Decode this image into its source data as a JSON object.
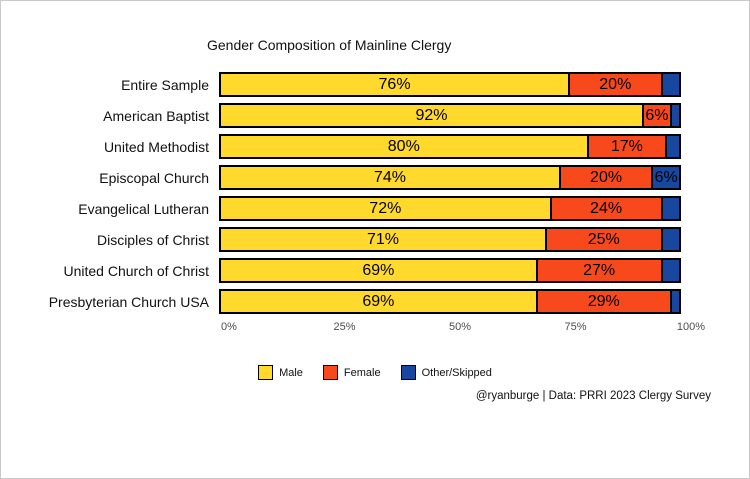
{
  "chart_data": {
    "type": "bar",
    "orientation": "horizontal",
    "stacked": true,
    "title": "Gender Composition of Mainline Clergy",
    "categories": [
      "Entire Sample",
      "American Baptist",
      "United Methodist",
      "Episcopal Church",
      "Evangelical Lutheran",
      "Disciples of Christ",
      "United Church of Christ",
      "Presbyterian Church USA"
    ],
    "series": [
      {
        "name": "Male",
        "color": "#FFD92C",
        "values": [
          76,
          92,
          80,
          74,
          72,
          71,
          69,
          69
        ]
      },
      {
        "name": "Female",
        "color": "#F8491C",
        "values": [
          20,
          6,
          17,
          20,
          24,
          25,
          27,
          29
        ]
      },
      {
        "name": "Other/Skipped",
        "color": "#17479E",
        "values": [
          4,
          2,
          3,
          6,
          4,
          4,
          4,
          2
        ]
      }
    ],
    "label_format": "{v}%",
    "label_min_value": 6,
    "x_ticks": [
      "0%",
      "25%",
      "50%",
      "75%",
      "100%"
    ],
    "x_tick_positions": [
      0,
      25,
      50,
      75,
      100
    ],
    "xlim": [
      0,
      100
    ],
    "grid": false,
    "legend_position": "bottom"
  },
  "caption": "@ryanburge | Data: PRRI 2023 Clergy Survey"
}
